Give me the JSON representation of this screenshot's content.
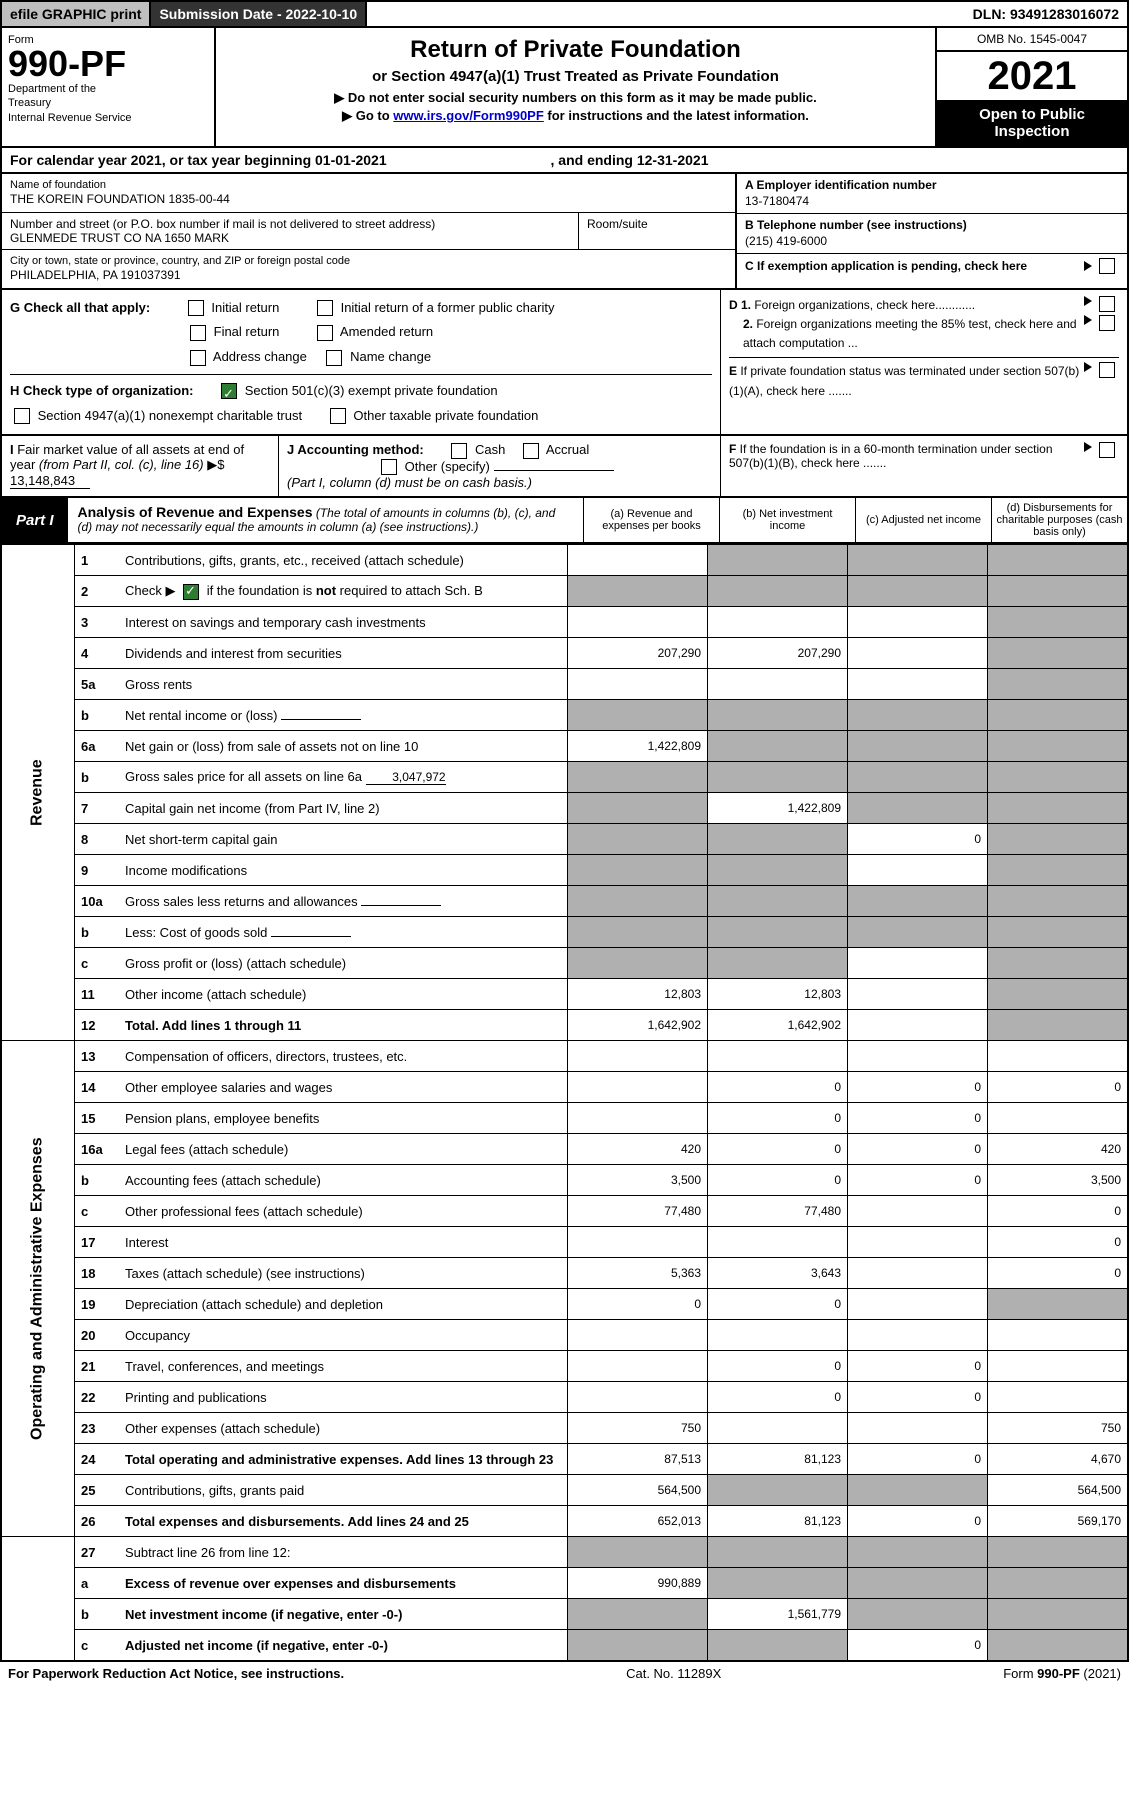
{
  "top_bar": {
    "efile": "efile GRAPHIC print",
    "submission_label": "Submission Date - 2022-10-10",
    "dln": "DLN: 93491283016072"
  },
  "header": {
    "form_label": "Form",
    "form_number": "990-PF",
    "dept": "Department of the Treasury\nInternal Revenue Service",
    "title": "Return of Private Foundation",
    "subtitle": "or Section 4947(a)(1) Trust Treated as Private Foundation",
    "instr1": "▶ Do not enter social security numbers on this form as it may be made public.",
    "instr2_pre": "▶ Go to ",
    "instr2_link": "www.irs.gov/Form990PF",
    "instr2_post": " for instructions and the latest information.",
    "omb": "OMB No. 1545-0047",
    "year": "2021",
    "open1": "Open to Public",
    "open2": "Inspection"
  },
  "calendar": "For calendar year 2021, or tax year beginning 01-01-2021",
  "calendar_end": ", and ending 12-31-2021",
  "info": {
    "name_label": "Name of foundation",
    "name": "THE KOREIN FOUNDATION 1835-00-44",
    "addr_label": "Number and street (or P.O. box number if mail is not delivered to street address)",
    "addr": "GLENMEDE TRUST CO NA 1650 MARK",
    "room_label": "Room/suite",
    "city_label": "City or town, state or province, country, and ZIP or foreign postal code",
    "city": "PHILADELPHIA, PA  191037391",
    "ein_label": "A Employer identification number",
    "ein": "13-7180474",
    "phone_label": "B Telephone number (see instructions)",
    "phone": "(215) 419-6000",
    "c_label": "C If exemption application is pending, check here"
  },
  "checks": {
    "g_label": "G Check all that apply:",
    "g1": "Initial return",
    "g2": "Initial return of a former public charity",
    "g3": "Final return",
    "g4": "Amended return",
    "g5": "Address change",
    "g6": "Name change",
    "h_label": "H Check type of organization:",
    "h1": "Section 501(c)(3) exempt private foundation",
    "h2": "Section 4947(a)(1) nonexempt charitable trust",
    "h3": "Other taxable private foundation",
    "d1": "D 1. Foreign organizations, check here............",
    "d2": "2. Foreign organizations meeting the 85% test, check here and attach computation ...",
    "e": "E  If private foundation status was terminated under section 507(b)(1)(A), check here .......",
    "i_label": "I Fair market value of all assets at end of year (from Part II, col. (c), line 16) ▶$",
    "i_value": "13,148,843",
    "j_label": "J Accounting method:",
    "j_cash": "Cash",
    "j_accrual": "Accrual",
    "j_other": "Other (specify)",
    "j_note": "(Part I, column (d) must be on cash basis.)",
    "f": "F  If the foundation is in a 60-month termination under section 507(b)(1)(B), check here ......."
  },
  "part1": {
    "badge": "Part I",
    "title": "Analysis of Revenue and Expenses",
    "note": "(The total of amounts in columns (b), (c), and (d) may not necessarily equal the amounts in column (a) (see instructions).)",
    "col_a": "(a)   Revenue and expenses per books",
    "col_b": "(b)   Net investment income",
    "col_c": "(c)   Adjusted net income",
    "col_d": "(d)   Disbursements for charitable purposes (cash basis only)"
  },
  "sections": {
    "revenue": "Revenue",
    "opex": "Operating and Administrative Expenses"
  },
  "rows": [
    {
      "n": "1",
      "d": "Contributions, gifts, grants, etc., received (attach schedule)",
      "a": "",
      "b": "gray",
      "c": "gray",
      "dd": "gray"
    },
    {
      "n": "2",
      "d": "Check ▶ ☑ if the foundation is not required to attach Sch. B",
      "a": "gray",
      "b": "gray",
      "c": "gray",
      "dd": "gray",
      "checked": true
    },
    {
      "n": "3",
      "d": "Interest on savings and temporary cash investments",
      "a": "",
      "b": "",
      "c": "",
      "dd": "gray"
    },
    {
      "n": "4",
      "d": "Dividends and interest from securities",
      "a": "207,290",
      "b": "207,290",
      "c": "",
      "dd": "gray"
    },
    {
      "n": "5a",
      "d": "Gross rents",
      "a": "",
      "b": "",
      "c": "",
      "dd": "gray"
    },
    {
      "n": "b",
      "d": "Net rental income or (loss)",
      "a": "gray",
      "b": "gray",
      "c": "gray",
      "dd": "gray",
      "inline": ""
    },
    {
      "n": "6a",
      "d": "Net gain or (loss) from sale of assets not on line 10",
      "a": "1,422,809",
      "b": "gray",
      "c": "gray",
      "dd": "gray"
    },
    {
      "n": "b",
      "d": "Gross sales price for all assets on line 6a",
      "a": "gray",
      "b": "gray",
      "c": "gray",
      "dd": "gray",
      "inline": "3,047,972"
    },
    {
      "n": "7",
      "d": "Capital gain net income (from Part IV, line 2)",
      "a": "gray",
      "b": "1,422,809",
      "c": "gray",
      "dd": "gray"
    },
    {
      "n": "8",
      "d": "Net short-term capital gain",
      "a": "gray",
      "b": "gray",
      "c": "0",
      "dd": "gray"
    },
    {
      "n": "9",
      "d": "Income modifications",
      "a": "gray",
      "b": "gray",
      "c": "",
      "dd": "gray"
    },
    {
      "n": "10a",
      "d": "Gross sales less returns and allowances",
      "a": "gray",
      "b": "gray",
      "c": "gray",
      "dd": "gray",
      "inline": ""
    },
    {
      "n": "b",
      "d": "Less: Cost of goods sold",
      "a": "gray",
      "b": "gray",
      "c": "gray",
      "dd": "gray",
      "inline": ""
    },
    {
      "n": "c",
      "d": "Gross profit or (loss) (attach schedule)",
      "a": "gray",
      "b": "gray",
      "c": "",
      "dd": "gray"
    },
    {
      "n": "11",
      "d": "Other income (attach schedule)",
      "a": "12,803",
      "b": "12,803",
      "c": "",
      "dd": "gray"
    },
    {
      "n": "12",
      "d": "Total. Add lines 1 through 11",
      "a": "1,642,902",
      "b": "1,642,902",
      "c": "",
      "dd": "gray",
      "bold": true
    }
  ],
  "opex_rows": [
    {
      "n": "13",
      "d": "Compensation of officers, directors, trustees, etc.",
      "a": "",
      "b": "",
      "c": "",
      "dd": ""
    },
    {
      "n": "14",
      "d": "Other employee salaries and wages",
      "a": "",
      "b": "0",
      "c": "0",
      "dd": "0"
    },
    {
      "n": "15",
      "d": "Pension plans, employee benefits",
      "a": "",
      "b": "0",
      "c": "0",
      "dd": ""
    },
    {
      "n": "16a",
      "d": "Legal fees (attach schedule)",
      "a": "420",
      "b": "0",
      "c": "0",
      "dd": "420"
    },
    {
      "n": "b",
      "d": "Accounting fees (attach schedule)",
      "a": "3,500",
      "b": "0",
      "c": "0",
      "dd": "3,500"
    },
    {
      "n": "c",
      "d": "Other professional fees (attach schedule)",
      "a": "77,480",
      "b": "77,480",
      "c": "",
      "dd": "0"
    },
    {
      "n": "17",
      "d": "Interest",
      "a": "",
      "b": "",
      "c": "",
      "dd": "0"
    },
    {
      "n": "18",
      "d": "Taxes (attach schedule) (see instructions)",
      "a": "5,363",
      "b": "3,643",
      "c": "",
      "dd": "0"
    },
    {
      "n": "19",
      "d": "Depreciation (attach schedule) and depletion",
      "a": "0",
      "b": "0",
      "c": "",
      "dd": "gray"
    },
    {
      "n": "20",
      "d": "Occupancy",
      "a": "",
      "b": "",
      "c": "",
      "dd": ""
    },
    {
      "n": "21",
      "d": "Travel, conferences, and meetings",
      "a": "",
      "b": "0",
      "c": "0",
      "dd": ""
    },
    {
      "n": "22",
      "d": "Printing and publications",
      "a": "",
      "b": "0",
      "c": "0",
      "dd": ""
    },
    {
      "n": "23",
      "d": "Other expenses (attach schedule)",
      "a": "750",
      "b": "",
      "c": "",
      "dd": "750"
    },
    {
      "n": "24",
      "d": "Total operating and administrative expenses. Add lines 13 through 23",
      "a": "87,513",
      "b": "81,123",
      "c": "0",
      "dd": "4,670",
      "bold": true
    },
    {
      "n": "25",
      "d": "Contributions, gifts, grants paid",
      "a": "564,500",
      "b": "gray",
      "c": "gray",
      "dd": "564,500"
    },
    {
      "n": "26",
      "d": "Total expenses and disbursements. Add lines 24 and 25",
      "a": "652,013",
      "b": "81,123",
      "c": "0",
      "dd": "569,170",
      "bold": true
    }
  ],
  "final_rows": [
    {
      "n": "27",
      "d": "Subtract line 26 from line 12:",
      "a": "gray",
      "b": "gray",
      "c": "gray",
      "dd": "gray"
    },
    {
      "n": "a",
      "d": "Excess of revenue over expenses and disbursements",
      "a": "990,889",
      "b": "gray",
      "c": "gray",
      "dd": "gray",
      "bold": true
    },
    {
      "n": "b",
      "d": "Net investment income (if negative, enter -0-)",
      "a": "gray",
      "b": "1,561,779",
      "c": "gray",
      "dd": "gray",
      "bold": true
    },
    {
      "n": "c",
      "d": "Adjusted net income (if negative, enter -0-)",
      "a": "gray",
      "b": "gray",
      "c": "0",
      "dd": "gray",
      "bold": true
    }
  ],
  "footer": {
    "left": "For Paperwork Reduction Act Notice, see instructions.",
    "mid": "Cat. No. 11289X",
    "right": "Form 990-PF (2021)"
  }
}
